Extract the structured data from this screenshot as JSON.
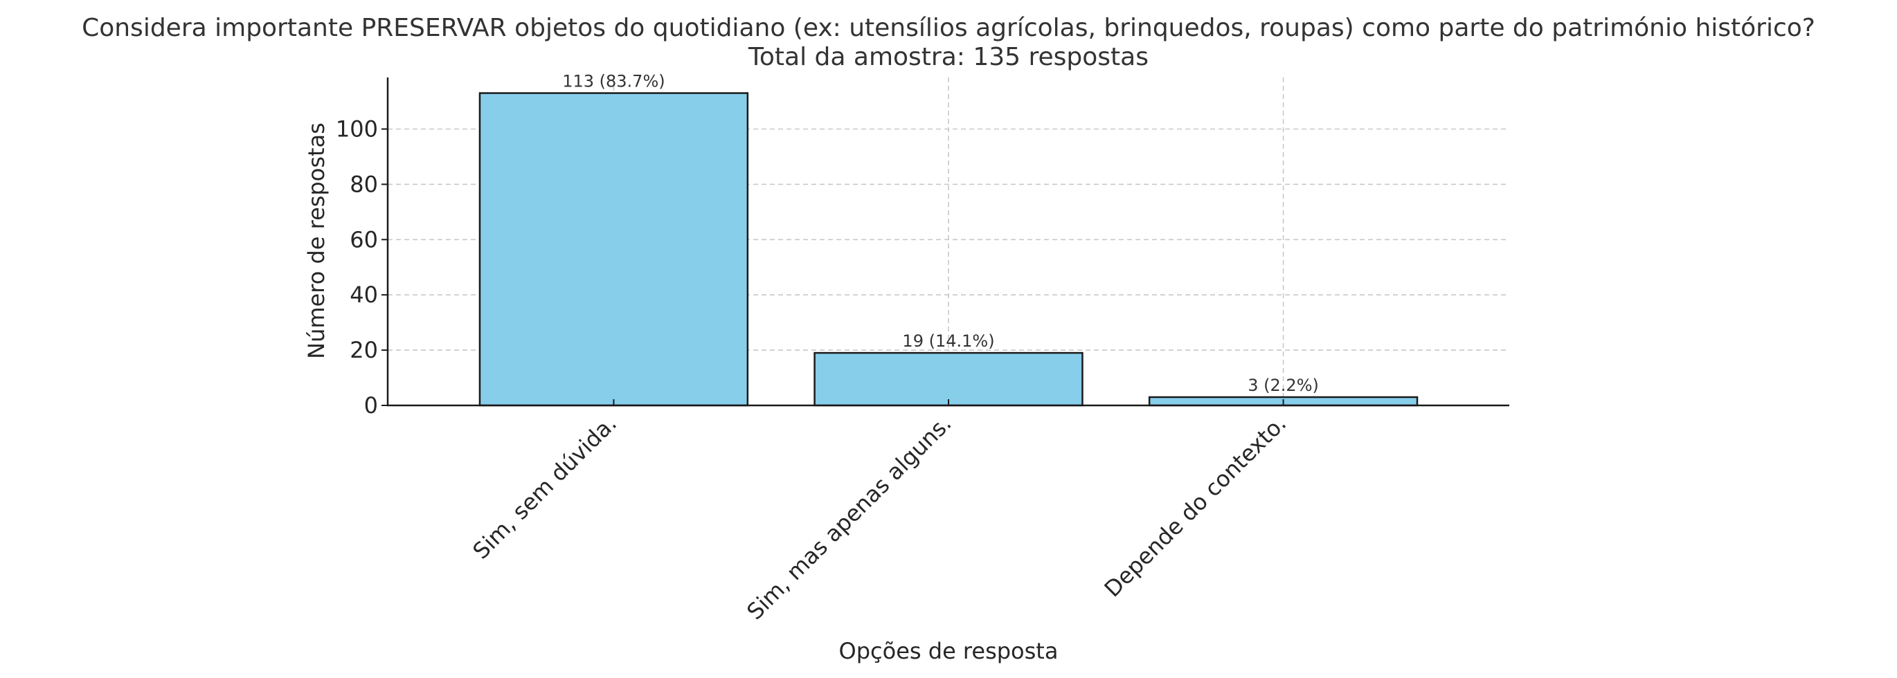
{
  "chart_data": {
    "type": "bar",
    "title": "Considera importante PRESERVAR objetos do quotidiano (ex: utensílios agrícolas, brinquedos, roupas) como parte do património histórico?",
    "subtitle": "Total da amostra: 135 respostas",
    "xlabel": "Opções de resposta",
    "ylabel": "Número de respostas",
    "categories": [
      "Sim, sem dúvida.",
      "Sim, mas apenas alguns.",
      "Depende do contexto."
    ],
    "values": [
      113,
      19,
      3
    ],
    "data_labels": [
      "113 (83.7%)",
      "19 (14.1%)",
      "3 (2.2%)"
    ],
    "y_ticks": [
      0,
      20,
      40,
      60,
      80,
      100
    ],
    "y_tick_labels": [
      "0",
      "20",
      "40",
      "60",
      "80",
      "100"
    ],
    "ylim": [
      0,
      118.65
    ],
    "grid": true,
    "bar_color": "#87CEEB",
    "edge_color": "#1a1a1a",
    "grid_color": "#c8c8c8"
  }
}
